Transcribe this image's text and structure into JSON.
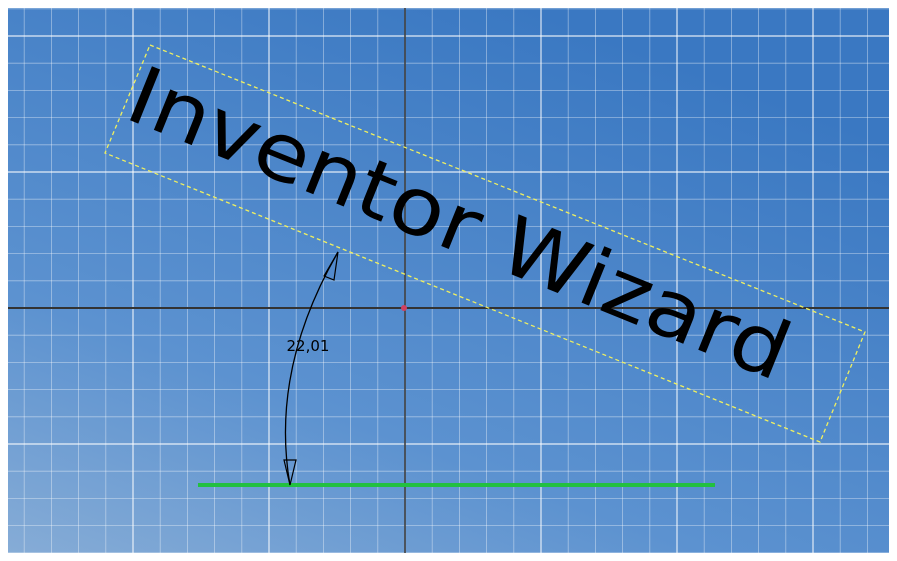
{
  "sketch": {
    "text": "Inventor Wizard",
    "dimension": "22,01"
  }
}
